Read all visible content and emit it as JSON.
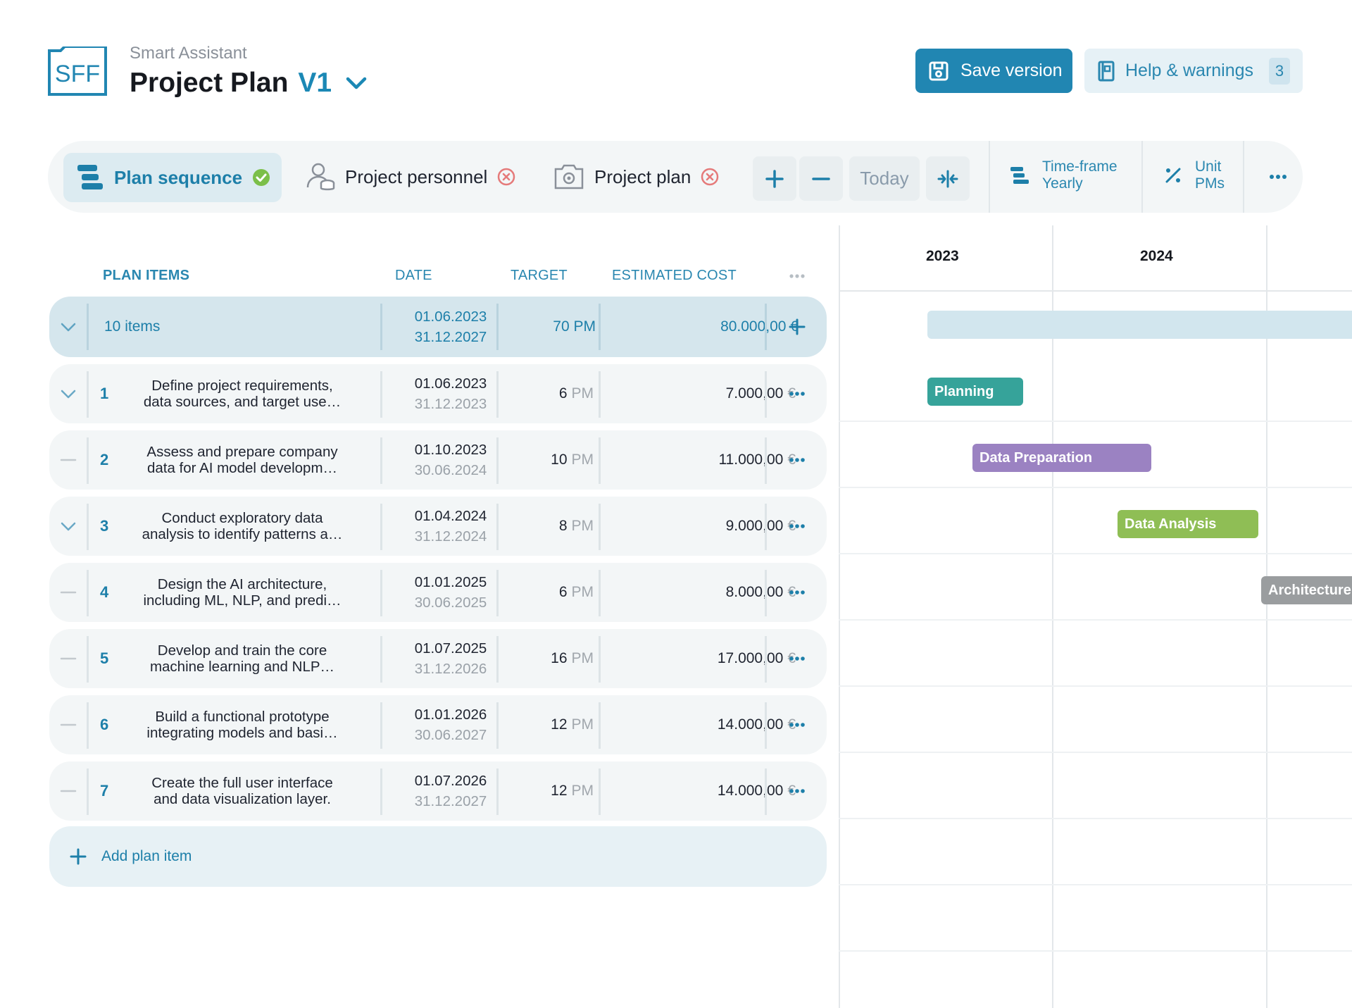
{
  "app": {
    "logo_text": "SFF",
    "subtitle": "Smart Assistant",
    "title": "Project Plan",
    "version": "V1"
  },
  "header_buttons": {
    "save": "Save version",
    "help": "Help & warnings",
    "help_count": "3"
  },
  "toolbar": {
    "tabs": [
      {
        "label": "Plan sequence",
        "status": "complete"
      },
      {
        "label": "Project personnel",
        "status": "error"
      },
      {
        "label": "Project plan",
        "status": "error"
      }
    ],
    "today": "Today",
    "timeframe_label": "Time-frame",
    "timeframe_value": "Yearly",
    "unit_label": "Unit",
    "unit_value": "PMs"
  },
  "table": {
    "headers": {
      "items": "PLAN ITEMS",
      "date": "DATE",
      "target": "TARGET",
      "cost": "ESTIMATED COST"
    },
    "summary": {
      "label": "10 items",
      "date_start": "01.06.2023",
      "date_end": "31.12.2027",
      "target": "70 PM",
      "cost": "80.000,00 €"
    },
    "rows": [
      {
        "num": "1",
        "line1": "Define project requirements,",
        "line2": "data sources, and target use…",
        "date_start": "01.06.2023",
        "date_end": "31.12.2023",
        "target_value": "6",
        "target_unit": "PM",
        "cost_value": "7.000,00",
        "cost_unit": "€",
        "toggle": "chevron"
      },
      {
        "num": "2",
        "line1": "Assess and prepare company",
        "line2": "data for AI model developm…",
        "date_start": "01.10.2023",
        "date_end": "30.06.2024",
        "target_value": "10",
        "target_unit": "PM",
        "cost_value": "11.000,00",
        "cost_unit": "€",
        "toggle": "dash"
      },
      {
        "num": "3",
        "line1": "Conduct exploratory data",
        "line2": "analysis to identify patterns a…",
        "date_start": "01.04.2024",
        "date_end": "31.12.2024",
        "target_value": "8",
        "target_unit": "PM",
        "cost_value": "9.000,00",
        "cost_unit": "€",
        "toggle": "chevron"
      },
      {
        "num": "4",
        "line1": "Design the AI architecture,",
        "line2": "including ML, NLP, and predi…",
        "date_start": "01.01.2025",
        "date_end": "30.06.2025",
        "target_value": "6",
        "target_unit": "PM",
        "cost_value": "8.000,00",
        "cost_unit": "€",
        "toggle": "dash"
      },
      {
        "num": "5",
        "line1": "Develop and train the core",
        "line2": "machine learning and NLP…",
        "date_start": "01.07.2025",
        "date_end": "31.12.2026",
        "target_value": "16",
        "target_unit": "PM",
        "cost_value": "17.000,00",
        "cost_unit": "€",
        "toggle": "dash"
      },
      {
        "num": "6",
        "line1": "Build a functional prototype",
        "line2": "integrating models and basi…",
        "date_start": "01.01.2026",
        "date_end": "30.06.2027",
        "target_value": "12",
        "target_unit": "PM",
        "cost_value": "14.000,00",
        "cost_unit": "€",
        "toggle": "dash"
      },
      {
        "num": "7",
        "line1": "Create the full user interface",
        "line2": "and data visualization layer.",
        "date_start": "01.07.2026",
        "date_end": "31.12.2027",
        "target_value": "12",
        "target_unit": "PM",
        "cost_value": "14.000,00",
        "cost_unit": "€",
        "toggle": "dash"
      }
    ],
    "add_label": "Add plan item"
  },
  "gantt": {
    "years": [
      "2023",
      "2024"
    ],
    "bars": [
      {
        "label": "Planning",
        "color": "#36a39a"
      },
      {
        "label": "Data Preparation",
        "color": "#9b82c2"
      },
      {
        "label": "Data Analysis",
        "color": "#8fbe55"
      },
      {
        "label": "Architecture",
        "color": "#9a9d9f"
      }
    ],
    "summary_bar_color": "#d2e6ee"
  },
  "colors": {
    "accent": "#2186b2",
    "success": "#7bbf49",
    "error": "#e57a7a"
  }
}
